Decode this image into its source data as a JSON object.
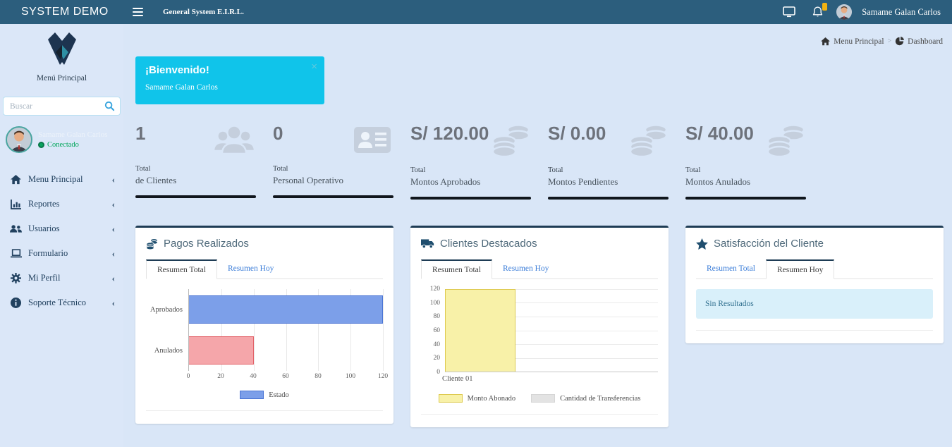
{
  "navbar": {
    "brand": "SYSTEM DEMO",
    "company": "General System E.I.R.L.",
    "user_name": "Samame Galan Carlos",
    "close_label": "×"
  },
  "sidebar": {
    "title": "Menú Principal",
    "search_placeholder": "Buscar",
    "user": {
      "name": "Samame Galan Carlos",
      "status": "Conectado"
    },
    "items": [
      {
        "label": "Menu Principal",
        "icon": "home-icon"
      },
      {
        "label": "Reportes",
        "icon": "bar-chart-icon"
      },
      {
        "label": "Usuarios",
        "icon": "users-icon"
      },
      {
        "label": "Formulario",
        "icon": "laptop-icon"
      },
      {
        "label": "Mi Perfil",
        "icon": "gear-icon"
      },
      {
        "label": "Soporte Técnico",
        "icon": "info-icon"
      }
    ],
    "chevron": "‹"
  },
  "breadcrumb": {
    "home": "Menu Principal",
    "separator": ">",
    "current": "Dashboard"
  },
  "welcome": {
    "title": "¡Bienvenido!",
    "name": "Samame Galan Carlos",
    "close_label": "×"
  },
  "stats": [
    {
      "value": "1",
      "label1": "Total",
      "label2": "de Clientes",
      "icon": "users-group-icon"
    },
    {
      "value": "0",
      "label1": "Total",
      "label2": "Personal Operativo",
      "icon": "id-card-icon"
    },
    {
      "value": "S/ 120.00",
      "label1": "Total",
      "label2": "Montos Aprobados",
      "icon": "coins-icon"
    },
    {
      "value": "S/ 0.00",
      "label1": "Total",
      "label2": "Montos Pendientes",
      "icon": "coins-icon"
    },
    {
      "value": "S/ 40.00",
      "label1": "Total",
      "label2": "Montos Anulados",
      "icon": "coins-icon"
    }
  ],
  "panels": [
    {
      "title": "Pagos Realizados",
      "icon": "coins-icon",
      "tabs": [
        "Resumen Total",
        "Resumen Hoy"
      ],
      "active_tab": 0
    },
    {
      "title": "Clientes Destacados",
      "icon": "truck-icon",
      "tabs": [
        "Resumen Total",
        "Resumen Hoy"
      ],
      "active_tab": 0
    },
    {
      "title": "Satisfacción del Cliente",
      "icon": "star-icon",
      "tabs": [
        "Resumen Total",
        "Resumen Hoy"
      ],
      "active_tab": 1,
      "empty_message": "Sin Resultados"
    }
  ],
  "chart_data": [
    {
      "type": "bar",
      "orientation": "horizontal",
      "title": "Pagos Realizados — Resumen Total",
      "categories": [
        "Aprobados",
        "Anulados"
      ],
      "values": [
        120,
        40
      ],
      "bar_colors": [
        "#7c9fe9",
        "#f5a6aa"
      ],
      "bar_borders": [
        "#4a74d4",
        "#e26168"
      ],
      "xlim": [
        0,
        120
      ],
      "xticks": [
        0,
        20,
        40,
        60,
        80,
        100,
        120
      ],
      "grid": true,
      "legend_position": "bottom",
      "legend": [
        {
          "label": "Estado",
          "color": "#7c9fe9",
          "border": "#4a74d4"
        }
      ]
    },
    {
      "type": "bar",
      "orientation": "vertical",
      "title": "Clientes Destacados — Resumen Total",
      "categories": [
        "Cliente 01"
      ],
      "series": [
        {
          "name": "Monto Abonado",
          "values": [
            120
          ],
          "color": "#f8f1a8",
          "border": "#ddc94e"
        },
        {
          "name": "Cantidad de Transferencias",
          "values": [
            0
          ],
          "color": "#e3e3e3",
          "border": "#d5d5d5"
        }
      ],
      "ylim": [
        0,
        120
      ],
      "yticks": [
        120,
        100,
        80,
        60,
        40,
        20,
        0
      ],
      "bar_width_pct": 33,
      "grid": true,
      "legend_position": "bottom"
    }
  ],
  "colors": {
    "navbar_bg": "#2c5e7d",
    "page_bg": "#d9e6f7",
    "banner_bg": "#10c4ea",
    "link_blue": "#3b7dd8",
    "status_green": "#00a65a",
    "badge_yellow": "#f3b311",
    "panel_top_border": "#1e3c55",
    "stat_underline": "#10161d",
    "alert_bg": "#d9f0fa"
  }
}
